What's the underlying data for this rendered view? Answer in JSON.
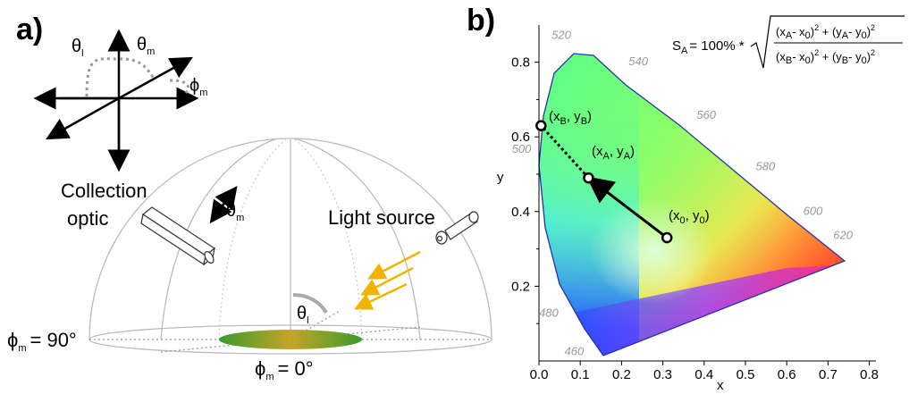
{
  "panel_a": {
    "label": "a)",
    "theta_l": "θ",
    "theta_l_sub": "l",
    "theta_m": "θ",
    "theta_m_sub": "m",
    "phi_m": "ϕ",
    "phi_m_sub": "m",
    "collection_optic_line1": "Collection",
    "collection_optic_line2": "optic",
    "light_source": "Light source",
    "phi_90": "= 90°",
    "phi_0": "= 0°"
  },
  "panel_b": {
    "label": "b)",
    "x_axis_label": "x",
    "y_axis_label": "y",
    "x_ticks": [
      "0.0",
      "0.1",
      "0.2",
      "0.3",
      "0.4",
      "0.5",
      "0.6",
      "0.7",
      "0.8"
    ],
    "y_ticks": [
      "0.2",
      "0.4",
      "0.6",
      "0.8"
    ],
    "wavelength_labels": [
      "460",
      "480",
      "500",
      "520",
      "540",
      "560",
      "580",
      "600",
      "620"
    ],
    "formula_lhs": "S",
    "formula_lhs_sub": "A",
    "formula_eq": "= 100% *",
    "formula_num": "(x",
    "point_0": "(x",
    "point_a": "(x",
    "point_b": "(x"
  },
  "chart_data": {
    "type": "scatter",
    "xlabel": "x",
    "ylabel": "y",
    "xlim": [
      0.0,
      0.8
    ],
    "ylim": [
      0.0,
      0.85
    ],
    "points": [
      {
        "name": "(x0, y0)",
        "x": 0.31,
        "y": 0.33
      },
      {
        "name": "(xA, yA)",
        "x": 0.12,
        "y": 0.49
      },
      {
        "name": "(xB, yB)",
        "x": 0.005,
        "y": 0.63
      }
    ],
    "wavelengths": [
      {
        "label": "460",
        "x": 0.144,
        "y": 0.03
      },
      {
        "label": "480",
        "x": 0.091,
        "y": 0.133
      },
      {
        "label": "500",
        "x": 0.008,
        "y": 0.538
      },
      {
        "label": "520",
        "x": 0.074,
        "y": 0.834
      },
      {
        "label": "540",
        "x": 0.23,
        "y": 0.754
      },
      {
        "label": "560",
        "x": 0.373,
        "y": 0.624
      },
      {
        "label": "580",
        "x": 0.512,
        "y": 0.487
      },
      {
        "label": "600",
        "x": 0.627,
        "y": 0.372
      },
      {
        "label": "620",
        "x": 0.691,
        "y": 0.308
      }
    ]
  },
  "colors": {
    "locus_edge": "#2233aa",
    "arrow_light": "#f0b400",
    "dashed": "#999999"
  }
}
